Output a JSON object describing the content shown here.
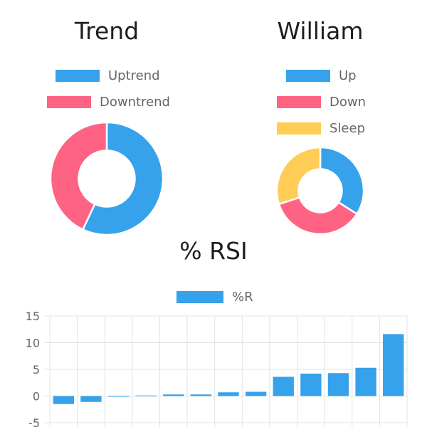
{
  "header": {
    "partial_title": ""
  },
  "chart_data": [
    {
      "type": "pie",
      "variant": "doughnut",
      "title": "Trend",
      "labels": [
        "Uptrend",
        "Downtrend"
      ],
      "values": [
        57,
        43
      ],
      "colors": [
        "#36a2eb",
        "#ff6384"
      ],
      "legend": "top"
    },
    {
      "type": "pie",
      "variant": "doughnut",
      "title": "William",
      "labels": [
        "Up",
        "Down",
        "Sleep"
      ],
      "values": [
        34,
        36,
        30
      ],
      "colors": [
        "#36a2eb",
        "#ff6384",
        "#ffcd56"
      ],
      "legend": "top"
    },
    {
      "type": "bar",
      "title": "% RSI",
      "series": [
        {
          "name": "%R",
          "color": "#36a2eb",
          "values": [
            -1.5,
            -1.1,
            -0.1,
            0.1,
            0.3,
            0.3,
            0.7,
            0.8,
            3.6,
            4.2,
            4.3,
            5.3,
            11.6
          ]
        }
      ],
      "yticks": [
        "15",
        "10",
        "5",
        "0",
        "-5"
      ],
      "ylim": [
        -5,
        15
      ],
      "grid": true,
      "legend": "top"
    }
  ]
}
